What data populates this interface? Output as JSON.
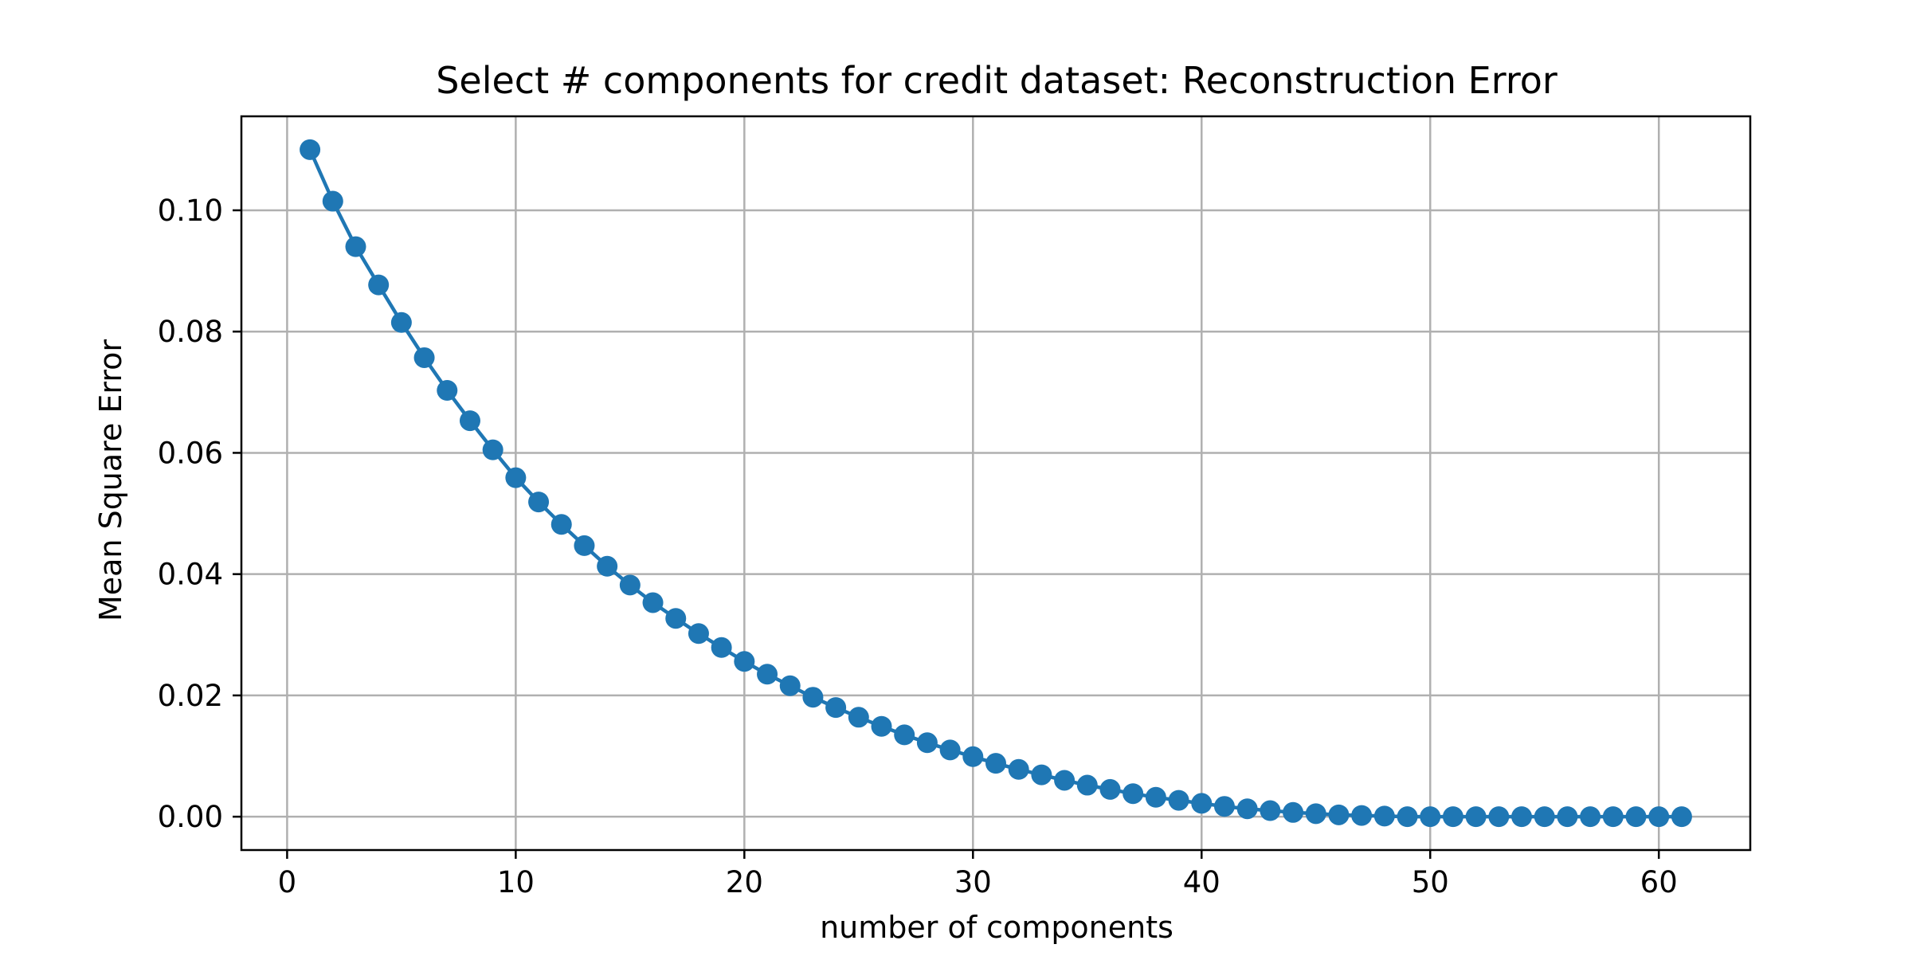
{
  "chart_data": {
    "type": "line",
    "title": "Select # components for credit dataset: Reconstruction Error",
    "xlabel": "number of components",
    "ylabel": "Mean Square Error",
    "xlim": [
      -2,
      64
    ],
    "ylim": [
      -0.0055,
      0.1155
    ],
    "xticks": [
      0,
      10,
      20,
      30,
      40,
      50,
      60
    ],
    "xtick_labels": [
      "0",
      "10",
      "20",
      "30",
      "40",
      "50",
      "60"
    ],
    "yticks": [
      0.0,
      0.02,
      0.04,
      0.06,
      0.08,
      0.1
    ],
    "ytick_labels": [
      "0.00",
      "0.02",
      "0.04",
      "0.06",
      "0.08",
      "0.10"
    ],
    "grid": true,
    "line_color": "#1f77b4",
    "marker": "circle",
    "series": [
      {
        "x": [
          1,
          2,
          3,
          4,
          5,
          6,
          7,
          8,
          9,
          10,
          11,
          12,
          13,
          14,
          15,
          16,
          17,
          18,
          19,
          20,
          21,
          22,
          23,
          24,
          25,
          26,
          27,
          28,
          29,
          30,
          31,
          32,
          33,
          34,
          35,
          36,
          37,
          38,
          39,
          40,
          41,
          42,
          43,
          44,
          45,
          46,
          47,
          48,
          49,
          50,
          51,
          52,
          53,
          54,
          55,
          56,
          57,
          58,
          59,
          60,
          61
        ],
        "y": [
          0.11,
          0.1015,
          0.094,
          0.0877,
          0.0815,
          0.0757,
          0.0703,
          0.0653,
          0.0605,
          0.0559,
          0.0519,
          0.0482,
          0.0447,
          0.0413,
          0.0382,
          0.0353,
          0.0327,
          0.0302,
          0.0279,
          0.0256,
          0.0235,
          0.0216,
          0.0197,
          0.018,
          0.0164,
          0.0149,
          0.0135,
          0.0122,
          0.011,
          0.0099,
          0.0088,
          0.0078,
          0.0069,
          0.006,
          0.0052,
          0.0045,
          0.0038,
          0.0032,
          0.0027,
          0.0022,
          0.0017,
          0.0013,
          0.001,
          0.0007,
          0.0005,
          0.0003,
          0.0002,
          0.0001,
          0.0,
          0.0,
          0.0,
          0.0,
          0.0,
          0.0,
          0.0,
          0.0,
          0.0,
          0.0,
          0.0,
          0.0,
          0.0
        ]
      }
    ]
  }
}
